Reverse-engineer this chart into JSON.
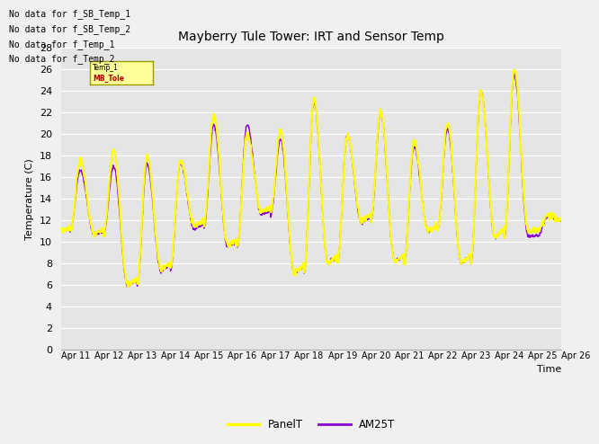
{
  "title": "Mayberry Tule Tower: IRT and Sensor Temp",
  "xlabel": "Time",
  "ylabel": "Temperature (C)",
  "ylim": [
    0,
    28
  ],
  "xtick_labels": [
    "Apr 11",
    "Apr 12",
    "Apr 13",
    "Apr 14",
    "Apr 15",
    "Apr 16",
    "Apr 17",
    "Apr 18",
    "Apr 19",
    "Apr 20",
    "Apr 21",
    "Apr 22",
    "Apr 23",
    "Apr 24",
    "Apr 25",
    "Apr 26"
  ],
  "panel_color": "#ffff00",
  "am25_color": "#8800cc",
  "no_data_texts": [
    "No data for f_SB_Temp_1",
    "No data for f_SB_Temp_2",
    "No data for f_Temp_1",
    "No data for f_Temp_2"
  ],
  "background_color": "#e8e8e8",
  "legend_entries": [
    "PanelT",
    "AM25T"
  ],
  "day_peaks_panel": [
    17.5,
    18.5,
    18.0,
    17.5,
    21.8,
    20.0,
    20.3,
    23.2,
    20.0,
    22.1,
    19.2,
    21.0,
    24.0,
    26.0,
    12.5
  ],
  "day_troughs_panel": [
    10.7,
    6.0,
    7.5,
    11.5,
    9.7,
    12.8,
    7.0,
    8.0,
    12.0,
    8.2,
    11.0,
    8.0,
    10.5,
    11.0,
    12.0
  ],
  "day_peaks_am25": [
    16.6,
    17.0,
    17.2,
    17.3,
    20.8,
    20.9,
    19.5,
    23.0,
    19.9,
    21.9,
    18.8,
    20.5,
    24.0,
    25.5,
    12.3
  ],
  "day_troughs_am25": [
    10.7,
    5.9,
    7.3,
    11.2,
    9.5,
    12.5,
    7.0,
    8.0,
    11.8,
    8.2,
    11.0,
    8.0,
    10.4,
    10.5,
    12.0
  ]
}
